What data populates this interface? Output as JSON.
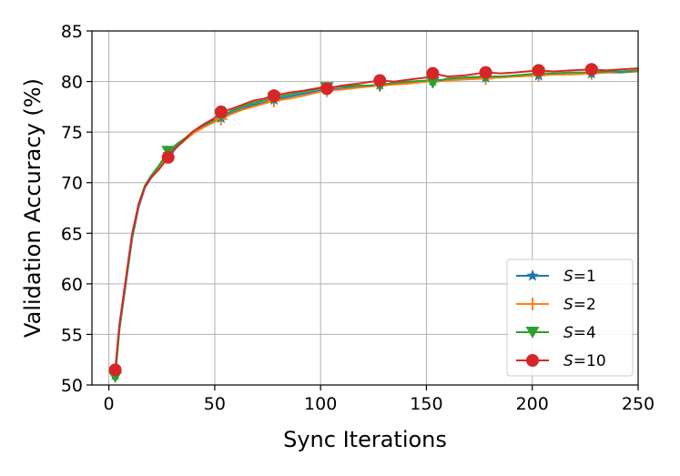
{
  "chart_data": {
    "type": "line",
    "title": "",
    "xlabel": "Sync Iterations",
    "ylabel": "Validation Accuracy (%)",
    "xlim": [
      -8,
      250
    ],
    "ylim": [
      50,
      85
    ],
    "xticks": [
      0,
      50,
      100,
      150,
      200,
      250
    ],
    "yticks": [
      50,
      55,
      60,
      65,
      70,
      75,
      80,
      85
    ],
    "grid": true,
    "legend_position": "bottom-right",
    "series": [
      {
        "name": "S=1",
        "label_var": "S",
        "label_val": "=1",
        "color": "#1f77b4",
        "marker": "star",
        "marker_x": [
          3,
          28,
          53,
          78,
          103,
          128,
          153,
          178,
          203,
          228
        ],
        "x": [
          3,
          5,
          8,
          11,
          14,
          17,
          20,
          24,
          28,
          32,
          36,
          40,
          45,
          50,
          53,
          58,
          63,
          68,
          73,
          78,
          85,
          92,
          100,
          103,
          110,
          118,
          128,
          135,
          142,
          150,
          153,
          160,
          168,
          178,
          185,
          192,
          203,
          210,
          218,
          228,
          235,
          242,
          250
        ],
        "y": [
          51.0,
          55.5,
          60.0,
          64.5,
          67.5,
          69.5,
          70.5,
          71.5,
          72.8,
          73.6,
          74.3,
          75.0,
          75.6,
          76.1,
          76.4,
          76.9,
          77.3,
          77.7,
          77.9,
          78.2,
          78.5,
          78.8,
          79.1,
          79.2,
          79.3,
          79.5,
          79.7,
          79.8,
          79.9,
          80.0,
          80.1,
          80.2,
          80.3,
          80.4,
          80.4,
          80.5,
          80.6,
          80.7,
          80.7,
          80.8,
          80.9,
          80.9,
          81.0
        ]
      },
      {
        "name": "S=2",
        "label_var": "S",
        "label_val": "=2",
        "color": "#ff7f0e",
        "marker": "plus",
        "marker_x": [
          3,
          28,
          53,
          78,
          103,
          128,
          153,
          178,
          203,
          228
        ],
        "x": [
          3,
          5,
          8,
          11,
          14,
          17,
          20,
          24,
          28,
          32,
          36,
          40,
          45,
          50,
          53,
          58,
          63,
          68,
          73,
          78,
          85,
          92,
          100,
          103,
          110,
          118,
          128,
          135,
          142,
          150,
          153,
          160,
          168,
          178,
          185,
          192,
          203,
          210,
          218,
          228,
          235,
          242,
          250
        ],
        "y": [
          51.2,
          55.8,
          60.3,
          64.8,
          67.7,
          69.6,
          70.6,
          71.7,
          72.6,
          73.5,
          74.2,
          74.9,
          75.5,
          76.0,
          76.3,
          76.8,
          77.2,
          77.5,
          77.8,
          78.1,
          78.3,
          78.6,
          79.0,
          79.1,
          79.2,
          79.4,
          79.6,
          79.7,
          79.8,
          80.0,
          80.0,
          80.1,
          80.2,
          80.3,
          80.4,
          80.5,
          80.6,
          80.7,
          80.7,
          80.8,
          80.9,
          81.0,
          81.0
        ]
      },
      {
        "name": "S=4",
        "label_var": "S",
        "label_val": "=4",
        "color": "#2ca02c",
        "marker": "triangle-down",
        "marker_x": [
          3,
          28,
          53,
          78,
          103,
          128,
          153,
          178,
          203,
          228
        ],
        "x": [
          3,
          5,
          8,
          11,
          14,
          17,
          20,
          24,
          28,
          32,
          36,
          40,
          45,
          50,
          53,
          58,
          63,
          68,
          73,
          78,
          85,
          92,
          100,
          103,
          110,
          118,
          128,
          135,
          142,
          150,
          153,
          160,
          168,
          178,
          185,
          192,
          203,
          210,
          218,
          228,
          235,
          242,
          250
        ],
        "y": [
          50.8,
          55.6,
          60.2,
          64.6,
          67.9,
          69.7,
          70.7,
          71.8,
          73.1,
          73.8,
          74.4,
          75.1,
          75.8,
          76.2,
          76.6,
          77.1,
          77.5,
          77.9,
          78.1,
          78.4,
          78.7,
          79.0,
          79.3,
          79.4,
          79.5,
          79.6,
          79.6,
          79.9,
          80.0,
          80.1,
          79.9,
          80.3,
          80.4,
          80.5,
          80.5,
          80.6,
          80.8,
          80.8,
          80.9,
          80.9,
          81.0,
          81.0,
          81.1
        ]
      },
      {
        "name": "S=10",
        "label_var": "S",
        "label_val": "=10",
        "color": "#d62728",
        "marker": "circle",
        "marker_x": [
          3,
          28,
          53,
          78,
          103,
          128,
          153,
          178,
          203,
          228
        ],
        "x": [
          3,
          5,
          8,
          11,
          14,
          17,
          20,
          24,
          28,
          32,
          36,
          40,
          45,
          50,
          53,
          58,
          63,
          68,
          73,
          78,
          85,
          92,
          100,
          103,
          110,
          118,
          128,
          135,
          142,
          150,
          153,
          160,
          168,
          178,
          185,
          192,
          203,
          210,
          218,
          228,
          235,
          242,
          250
        ],
        "y": [
          51.5,
          56.0,
          60.5,
          65.0,
          67.8,
          69.6,
          70.5,
          71.4,
          72.5,
          73.5,
          74.3,
          75.1,
          75.8,
          76.4,
          77.0,
          77.3,
          77.7,
          78.1,
          78.3,
          78.6,
          78.9,
          79.1,
          79.4,
          79.3,
          79.6,
          79.8,
          80.1,
          80.0,
          80.2,
          80.4,
          80.8,
          80.5,
          80.6,
          80.9,
          80.8,
          80.9,
          81.1,
          81.0,
          81.1,
          81.2,
          81.1,
          81.2,
          81.3
        ]
      }
    ]
  }
}
